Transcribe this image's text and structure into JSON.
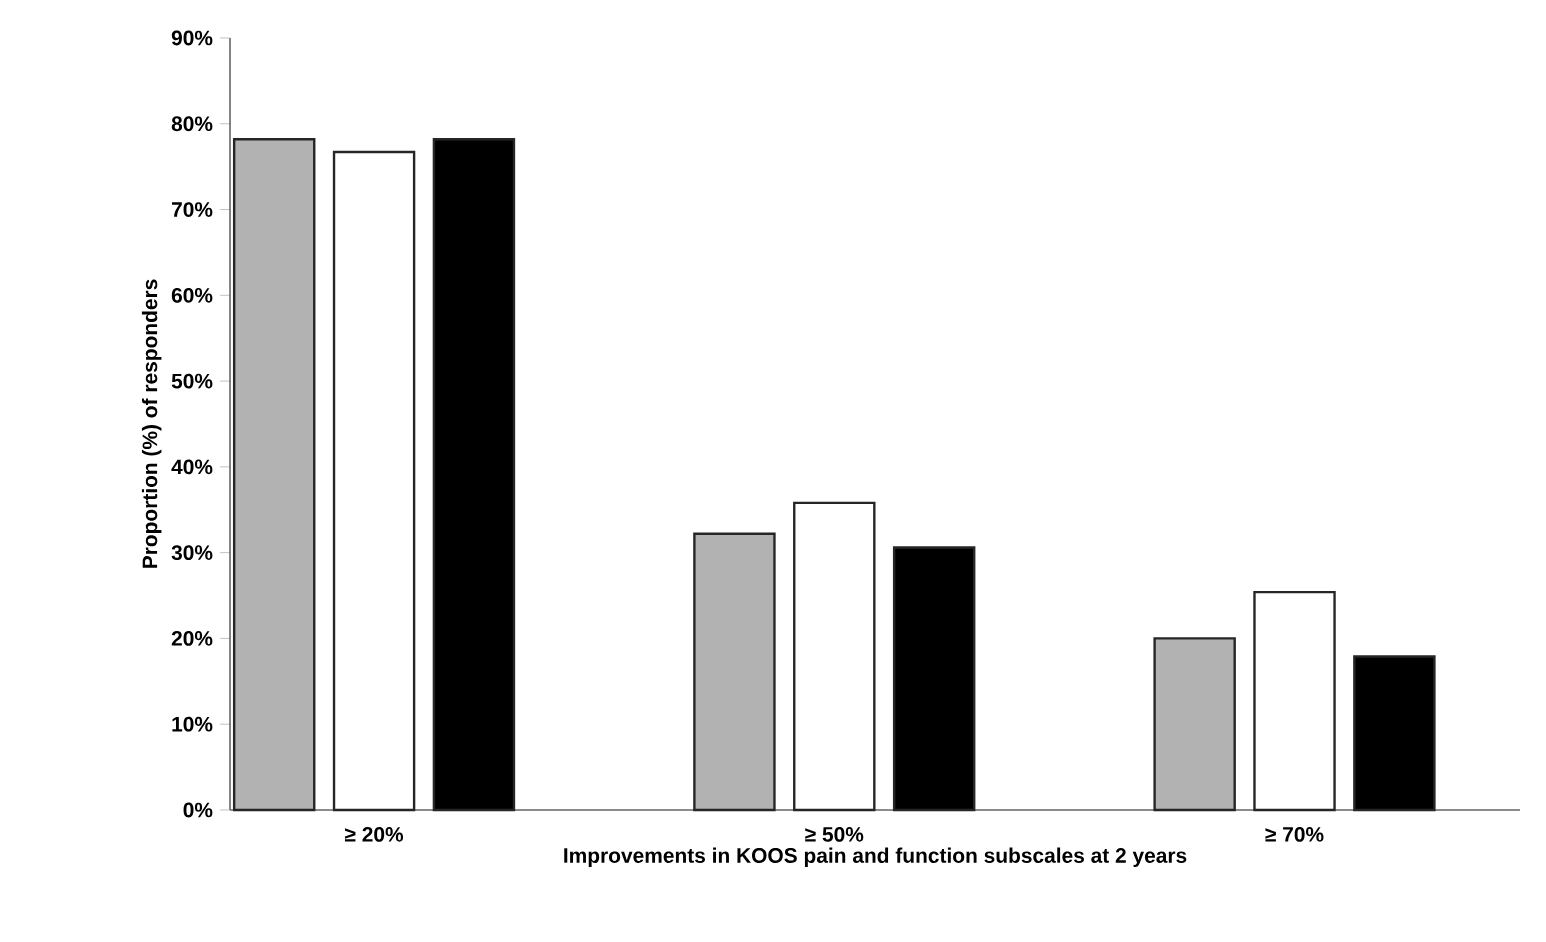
{
  "chart_data": {
    "type": "bar",
    "xlabel": "Improvements in KOOS pain and function subscales at 2 years",
    "ylabel": "Proportion (%) of responders",
    "categories": [
      "≥ 20%",
      "≥ 50%",
      "≥ 70%"
    ],
    "series": [
      {
        "color": "#b2b2b2",
        "values": [
          78.2,
          32.2,
          20.0
        ]
      },
      {
        "color": "#ffffff",
        "values": [
          76.7,
          35.8,
          25.4
        ]
      },
      {
        "color": "#000000",
        "values": [
          78.2,
          30.6,
          17.9
        ]
      }
    ],
    "ylim": [
      0,
      90
    ],
    "yticks": [
      {
        "value": 0,
        "label": "0%"
      },
      {
        "value": 10,
        "label": "10%"
      },
      {
        "value": 20,
        "label": "20%"
      },
      {
        "value": 30,
        "label": "30%"
      },
      {
        "value": 40,
        "label": "40%"
      },
      {
        "value": 50,
        "label": "50%"
      },
      {
        "value": 60,
        "label": "60%"
      },
      {
        "value": 70,
        "label": "70%"
      },
      {
        "value": 80,
        "label": "80%"
      },
      {
        "value": 90,
        "label": "90%"
      }
    ],
    "line_style": "solid"
  }
}
